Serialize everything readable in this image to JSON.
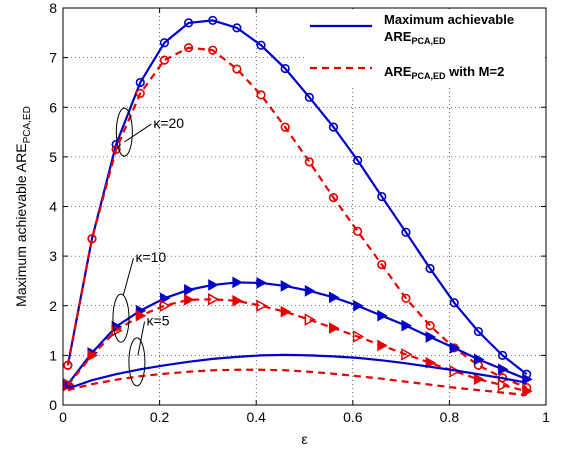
{
  "chart_data": {
    "type": "line",
    "xlabel": "ε",
    "ylabel_main": "Maximum achievable ARE",
    "ylabel_sub": "PCA,ED",
    "xlim": [
      0,
      1
    ],
    "ylim": [
      0,
      8
    ],
    "grid": true,
    "legend_placement": "top-right",
    "x_ticks": [
      "0",
      "0.2",
      "0.4",
      "0.6",
      "0.8",
      "1"
    ],
    "y_ticks": [
      "0",
      "1",
      "2",
      "3",
      "4",
      "5",
      "6",
      "7",
      "8"
    ],
    "legend": [
      {
        "line1": "Maximum achievable",
        "line2_main": "ARE",
        "line2_sub": "PCA,ED",
        "line2_rest": "",
        "style": "solid"
      },
      {
        "line1": "",
        "line2_main": "ARE",
        "line2_sub": "PCA,ED",
        "line2_rest": " with M=2",
        "style": "dashed"
      }
    ],
    "annotations": [
      {
        "label": "κ=20",
        "text_x": 0.187,
        "text_y": 5.58,
        "ellipse_x": 0.127,
        "ellipse_y": 5.5,
        "arrow_to_x": 0.127,
        "arrow_to_y": 5.3
      },
      {
        "label": "κ=10",
        "text_x": 0.15,
        "text_y": 2.88,
        "ellipse_x": 0.12,
        "ellipse_y": 1.75,
        "arrow_to_x": 0.125,
        "arrow_to_y": 2.22
      },
      {
        "label": "κ=5",
        "text_x": 0.173,
        "text_y": 1.6,
        "ellipse_x": 0.153,
        "ellipse_y": 0.87,
        "arrow_to_x": 0.155,
        "arrow_to_y": 1.0
      }
    ],
    "colors": {
      "max": "#0000cc",
      "m2": "#e60000"
    },
    "series": [
      {
        "group": "κ=20",
        "kind": "max",
        "marker": "circle",
        "x": [
          0.01,
          0.06,
          0.11,
          0.16,
          0.21,
          0.26,
          0.31,
          0.36,
          0.41,
          0.46,
          0.51,
          0.56,
          0.61,
          0.66,
          0.71,
          0.76,
          0.81,
          0.86,
          0.91,
          0.96
        ],
        "y": [
          0.8,
          3.35,
          5.25,
          6.5,
          7.3,
          7.7,
          7.75,
          7.6,
          7.25,
          6.78,
          6.2,
          5.6,
          4.93,
          4.2,
          3.48,
          2.75,
          2.06,
          1.48,
          1.0,
          0.62
        ]
      },
      {
        "group": "κ=20",
        "kind": "m2",
        "marker": "circle-open",
        "x": [
          0.01,
          0.06,
          0.11,
          0.16,
          0.21,
          0.26,
          0.31,
          0.36,
          0.41,
          0.46,
          0.51,
          0.56,
          0.61,
          0.66,
          0.71,
          0.76,
          0.81,
          0.86,
          0.91,
          0.96
        ],
        "y": [
          0.8,
          3.35,
          5.15,
          6.28,
          6.95,
          7.2,
          7.15,
          6.77,
          6.25,
          5.6,
          4.9,
          4.18,
          3.5,
          2.83,
          2.15,
          1.6,
          1.15,
          0.8,
          0.55,
          0.35
        ]
      },
      {
        "group": "κ=10",
        "kind": "max",
        "marker": "triangle-right",
        "x": [
          0.01,
          0.06,
          0.11,
          0.16,
          0.21,
          0.26,
          0.31,
          0.36,
          0.41,
          0.46,
          0.51,
          0.56,
          0.61,
          0.66,
          0.71,
          0.76,
          0.81,
          0.86,
          0.91,
          0.96
        ],
        "y": [
          0.42,
          1.05,
          1.58,
          1.9,
          2.15,
          2.32,
          2.42,
          2.47,
          2.46,
          2.4,
          2.3,
          2.17,
          2.0,
          1.8,
          1.6,
          1.37,
          1.15,
          0.92,
          0.72,
          0.52
        ]
      },
      {
        "group": "κ=10",
        "kind": "m2",
        "marker": "triangle-right-alt",
        "x": [
          0.01,
          0.06,
          0.11,
          0.16,
          0.21,
          0.26,
          0.31,
          0.36,
          0.41,
          0.46,
          0.51,
          0.56,
          0.61,
          0.66,
          0.71,
          0.76,
          0.81,
          0.86,
          0.91,
          0.96
        ],
        "y": [
          0.4,
          1.0,
          1.5,
          1.8,
          2.0,
          2.12,
          2.13,
          2.1,
          2.0,
          1.88,
          1.72,
          1.55,
          1.38,
          1.2,
          1.02,
          0.85,
          0.68,
          0.52,
          0.4,
          0.28
        ]
      },
      {
        "group": "κ=5",
        "kind": "max",
        "marker": "none",
        "x": [
          0.01,
          0.06,
          0.11,
          0.16,
          0.21,
          0.26,
          0.31,
          0.36,
          0.41,
          0.46,
          0.51,
          0.56,
          0.61,
          0.66,
          0.71,
          0.76,
          0.81,
          0.86,
          0.91,
          0.96
        ],
        "y": [
          0.33,
          0.5,
          0.62,
          0.72,
          0.8,
          0.87,
          0.93,
          0.97,
          1.0,
          1.01,
          1.0,
          0.98,
          0.95,
          0.9,
          0.84,
          0.77,
          0.7,
          0.62,
          0.54,
          0.45
        ]
      },
      {
        "group": "κ=5",
        "kind": "m2",
        "marker": "none",
        "x": [
          0.01,
          0.06,
          0.11,
          0.16,
          0.21,
          0.26,
          0.31,
          0.36,
          0.41,
          0.46,
          0.51,
          0.56,
          0.61,
          0.66,
          0.71,
          0.76,
          0.81,
          0.86,
          0.91,
          0.96
        ],
        "y": [
          0.3,
          0.42,
          0.51,
          0.58,
          0.63,
          0.67,
          0.7,
          0.71,
          0.71,
          0.7,
          0.67,
          0.63,
          0.58,
          0.53,
          0.47,
          0.41,
          0.35,
          0.3,
          0.25,
          0.2
        ]
      }
    ]
  }
}
